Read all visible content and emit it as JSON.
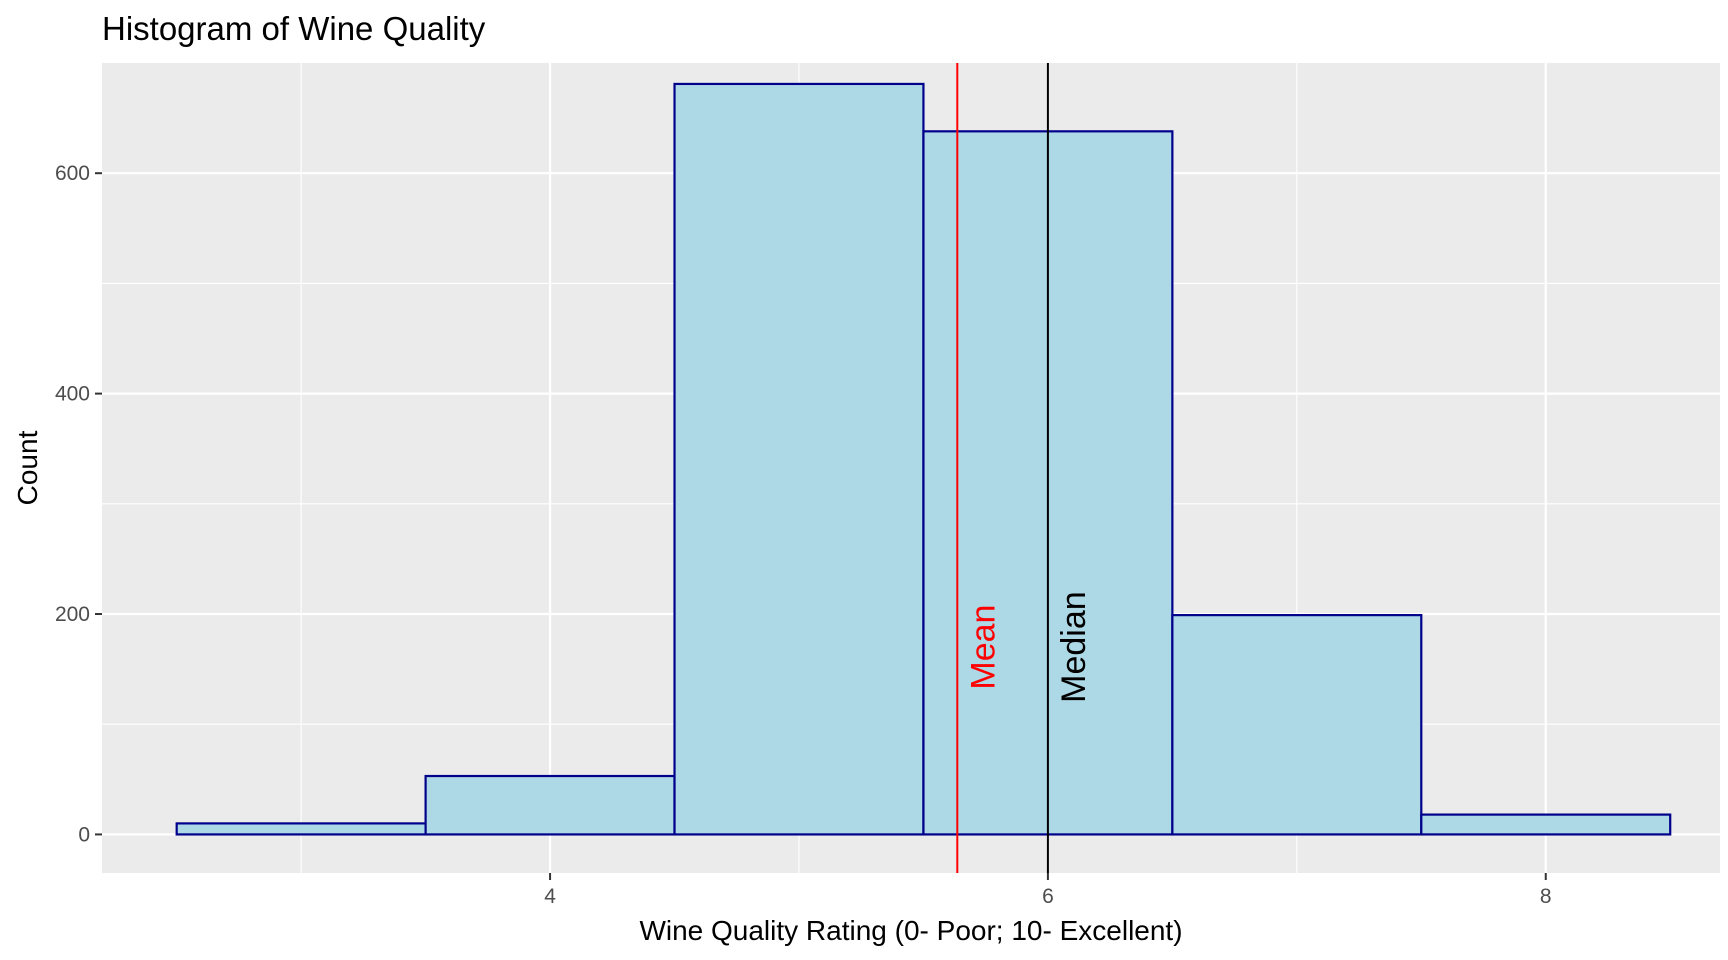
{
  "chart_data": {
    "type": "bar",
    "title": "Histogram of Wine Quality",
    "xlabel": "Wine Quality Rating (0- Poor; 10- Excellent)",
    "ylabel": "Count",
    "xlim": [
      2.2,
      8.7
    ],
    "ylim": [
      -35,
      700
    ],
    "x_ticks": [
      4,
      6,
      8
    ],
    "y_ticks": [
      0,
      200,
      400,
      600
    ],
    "bins": [
      {
        "x": 3,
        "count": 10
      },
      {
        "x": 4,
        "count": 53
      },
      {
        "x": 5,
        "count": 681
      },
      {
        "x": 6,
        "count": 638
      },
      {
        "x": 7,
        "count": 199
      },
      {
        "x": 8,
        "count": 18
      }
    ],
    "bin_width": 1,
    "bar_fill": "#add8e6",
    "bar_stroke": "#00008b",
    "panel_background": "#ebebeb",
    "grid": true,
    "reference_lines": [
      {
        "label": "Mean",
        "x": 5.636,
        "color": "#ff0000"
      },
      {
        "label": "Median",
        "x": 6,
        "color": "#000000"
      }
    ]
  }
}
